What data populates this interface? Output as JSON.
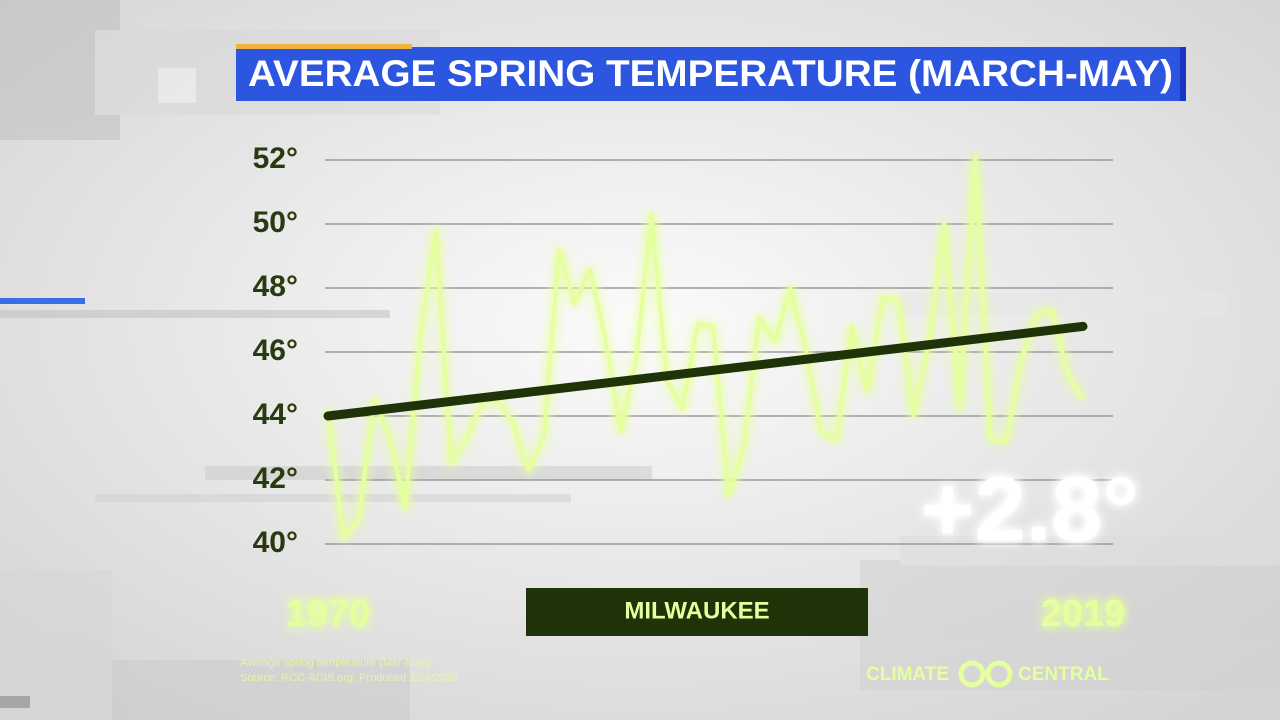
{
  "chart_data": {
    "type": "line",
    "title": "AVERAGE SPRING TEMPERATURE (MARCH-MAY)",
    "location_label": "MILWAUKEE",
    "annotation": "+2.8°",
    "source_lines": [
      "Average spring temperature (Mar-May)",
      "Source: RCC-ACIS.org. Produced 2/26/2020"
    ],
    "logo": [
      "CLIMATE",
      "CENTRAL"
    ],
    "x": [
      1970,
      1971,
      1972,
      1973,
      1974,
      1975,
      1976,
      1977,
      1978,
      1979,
      1980,
      1981,
      1982,
      1983,
      1984,
      1985,
      1986,
      1987,
      1988,
      1989,
      1990,
      1991,
      1992,
      1993,
      1994,
      1995,
      1996,
      1997,
      1998,
      1999,
      2000,
      2001,
      2002,
      2003,
      2004,
      2005,
      2006,
      2007,
      2008,
      2009,
      2010,
      2011,
      2012,
      2013,
      2014,
      2015,
      2016,
      2017,
      2018,
      2019
    ],
    "values": [
      44.2,
      40.2,
      40.75,
      44.5,
      43.4,
      41.1,
      46.5,
      49.8,
      42.5,
      43.3,
      44.4,
      44.5,
      43.8,
      42.3,
      43.3,
      49.2,
      47.5,
      48.6,
      46.4,
      43.5,
      45.8,
      50.3,
      45.1,
      44.2,
      46.9,
      46.8,
      41.5,
      43.1,
      47.1,
      46.3,
      48.0,
      46.1,
      43.5,
      43.25,
      46.8,
      44.75,
      47.7,
      47.6,
      44.0,
      46.3,
      50.0,
      44.2,
      52.1,
      43.25,
      43.2,
      45.75,
      47.2,
      47.3,
      45.3,
      44.5
    ],
    "color": "#e6ff9e",
    "trend_line": {
      "x": [
        1970,
        2019
      ],
      "values": [
        44.0,
        46.8
      ],
      "color": "#1f3309"
    },
    "xlim": [
      1970,
      2019
    ],
    "xticks": [
      1970,
      2019
    ],
    "ylim": [
      40,
      52
    ],
    "yticks": [
      {
        "value": 40,
        "label": "40°"
      },
      {
        "value": 42,
        "label": "42°"
      },
      {
        "value": 44,
        "label": "44°"
      },
      {
        "value": 46,
        "label": "46°"
      },
      {
        "value": 48,
        "label": "48°"
      },
      {
        "value": 50,
        "label": "50°"
      },
      {
        "value": 52,
        "label": "52°"
      }
    ],
    "grid": true
  }
}
